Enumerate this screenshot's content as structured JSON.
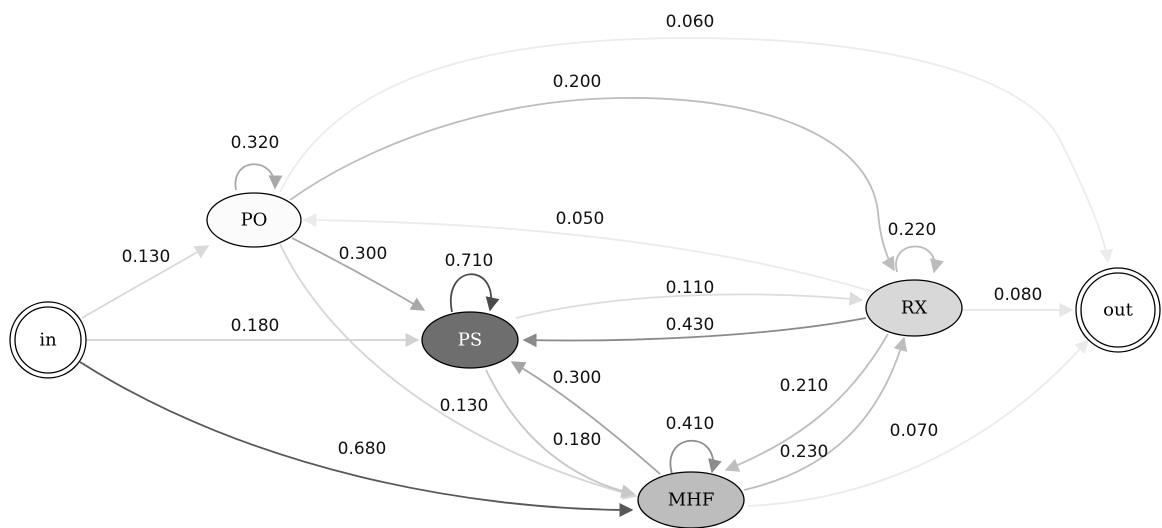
{
  "nodes": [
    {
      "id": "in",
      "label": "in",
      "fill": "#ffffff",
      "text_color": "#000000",
      "shape": "double-circle"
    },
    {
      "id": "PO",
      "label": "PO",
      "fill": "#fbfbfb",
      "text_color": "#000000",
      "shape": "ellipse"
    },
    {
      "id": "PS",
      "label": "PS",
      "fill": "#6e6e6e",
      "text_color": "#ffffff",
      "shape": "ellipse"
    },
    {
      "id": "RX",
      "label": "RX",
      "fill": "#d8d8d8",
      "text_color": "#000000",
      "shape": "ellipse"
    },
    {
      "id": "MHF",
      "label": "MHF",
      "fill": "#bdbdbd",
      "text_color": "#000000",
      "shape": "ellipse"
    },
    {
      "id": "out",
      "label": "out",
      "fill": "#ffffff",
      "text_color": "#000000",
      "shape": "double-circle"
    }
  ],
  "edges": [
    {
      "id": "in-po",
      "from": "in",
      "to": "PO",
      "weight": "0.130",
      "color": "#d9d9d9"
    },
    {
      "id": "in-ps",
      "from": "in",
      "to": "PS",
      "weight": "0.180",
      "color": "#d2d2d2"
    },
    {
      "id": "in-mhf",
      "from": "in",
      "to": "MHF",
      "weight": "0.680",
      "color": "#585858"
    },
    {
      "id": "po-po",
      "from": "PO",
      "to": "PO",
      "weight": "0.320",
      "color": "#a8a8a8"
    },
    {
      "id": "po-ps",
      "from": "PO",
      "to": "PS",
      "weight": "0.300",
      "color": "#a8a8a8"
    },
    {
      "id": "po-rx",
      "from": "PO",
      "to": "RX",
      "weight": "0.200",
      "color": "#bdbdbd"
    },
    {
      "id": "po-out",
      "from": "PO",
      "to": "out",
      "weight": "0.060",
      "color": "#ececec"
    },
    {
      "id": "po-mhf",
      "from": "PO",
      "to": "MHF",
      "weight": "0.130",
      "color": "#d6d6d6"
    },
    {
      "id": "rx-po",
      "from": "RX",
      "to": "PO",
      "weight": "0.050",
      "color": "#ebebeb"
    },
    {
      "id": "rx-rx",
      "from": "RX",
      "to": "RX",
      "weight": "0.220",
      "color": "#bbbbbb"
    },
    {
      "id": "rx-out",
      "from": "RX",
      "to": "out",
      "weight": "0.080",
      "color": "#e6e6e6"
    },
    {
      "id": "rx-ps",
      "from": "RX",
      "to": "PS",
      "weight": "0.430",
      "color": "#8a8a8a"
    },
    {
      "id": "rx-mhf",
      "from": "RX",
      "to": "MHF",
      "weight": "0.210",
      "color": "#bfbfbf"
    },
    {
      "id": "ps-ps",
      "from": "PS",
      "to": "PS",
      "weight": "0.710",
      "color": "#4a4a4a"
    },
    {
      "id": "ps-rx",
      "from": "PS",
      "to": "RX",
      "weight": "0.110",
      "color": "#dcdcdc"
    },
    {
      "id": "ps-mhf",
      "from": "PS",
      "to": "MHF",
      "weight": "0.180",
      "color": "#c8c8c8"
    },
    {
      "id": "mhf-ps",
      "from": "MHF",
      "to": "PS",
      "weight": "0.300",
      "color": "#a4a4a4"
    },
    {
      "id": "mhf-mhf",
      "from": "MHF",
      "to": "MHF",
      "weight": "0.410",
      "color": "#8c8c8c"
    },
    {
      "id": "mhf-rx",
      "from": "MHF",
      "to": "RX",
      "weight": "0.230",
      "color": "#bdbdbd"
    },
    {
      "id": "mhf-out",
      "from": "MHF",
      "to": "out",
      "weight": "0.070",
      "color": "#ebebeb"
    }
  ]
}
